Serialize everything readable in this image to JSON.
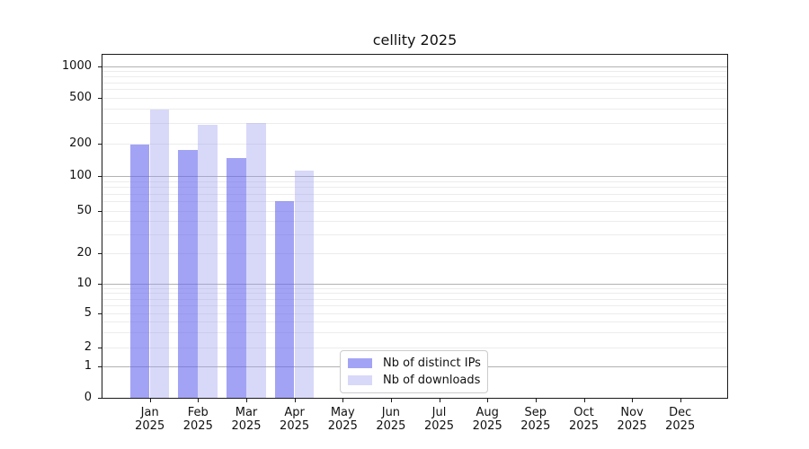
{
  "chart_data": {
    "type": "bar",
    "title": "cellity 2025",
    "categories": [
      "Jan",
      "Feb",
      "Mar",
      "Apr",
      "May",
      "Jun",
      "Jul",
      "Aug",
      "Sep",
      "Oct",
      "Nov",
      "Dec"
    ],
    "year_label": "2025",
    "series": [
      {
        "name": "Nb of distinct IPs",
        "color": "rgba(102,102,238,0.60)",
        "values": [
          195,
          175,
          147,
          60,
          null,
          null,
          null,
          null,
          null,
          null,
          null,
          null
        ]
      },
      {
        "name": "Nb of downloads",
        "color": "rgba(153,153,238,0.38)",
        "values": [
          395,
          290,
          300,
          112,
          null,
          null,
          null,
          null,
          null,
          null,
          null,
          null
        ]
      }
    ],
    "y_ticks": [
      0,
      1,
      2,
      5,
      10,
      20,
      50,
      100,
      200,
      500,
      1000
    ],
    "y_major_gridlines": [
      1,
      10,
      100,
      1000
    ],
    "yscale": "symlog",
    "ylim": [
      0,
      1400
    ],
    "grid": "horizontal, minor and major",
    "legend_position": "lower center inside axes"
  },
  "legend": {
    "items": [
      {
        "label": "Nb of distinct IPs"
      },
      {
        "label": "Nb of downloads"
      }
    ]
  },
  "colors": {
    "bar_distinct_ips": "rgba(102,102,238,0.60)",
    "bar_downloads": "rgba(153,153,238,0.38)",
    "grid_minor": "#ececec",
    "grid_major": "#b2b2b2",
    "axis_frame": "#1a1a1a",
    "text": "#111111"
  }
}
